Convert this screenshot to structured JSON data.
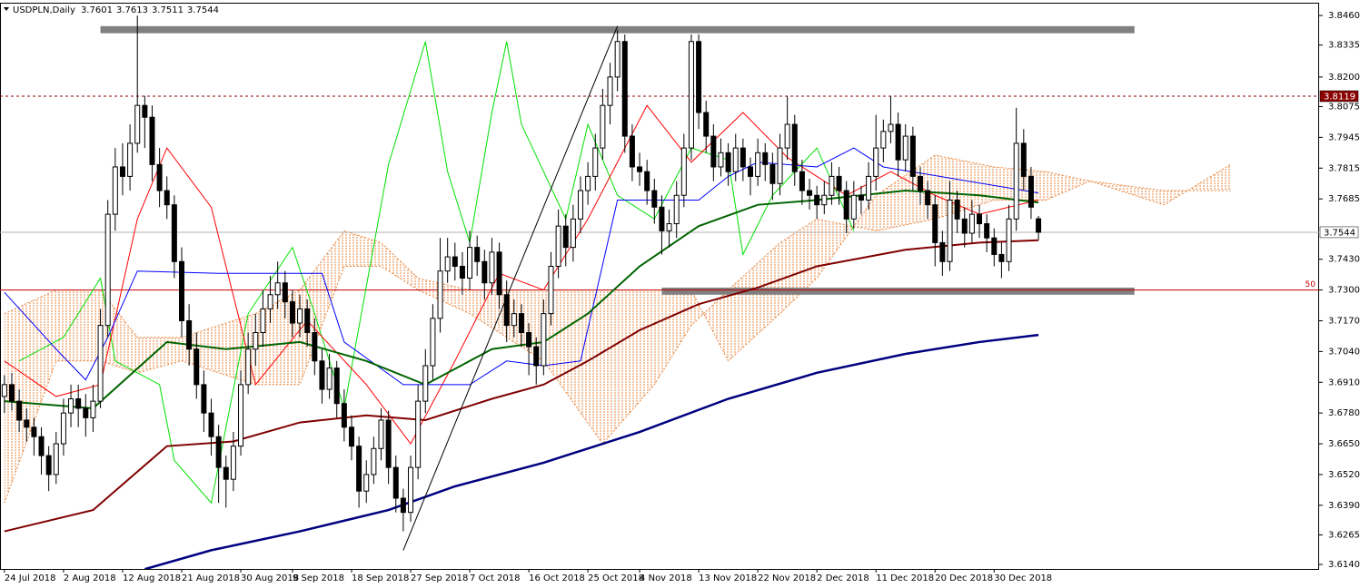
{
  "chart_data": {
    "type": "candlestick",
    "title": "USDPLN,Daily",
    "ohlc": [
      [
        3.685,
        3.694,
        3.678,
        3.69
      ],
      [
        3.69,
        3.695,
        3.679,
        3.683
      ],
      [
        3.683,
        3.688,
        3.67,
        3.675
      ],
      [
        3.675,
        3.68,
        3.666,
        3.672
      ],
      [
        3.672,
        3.676,
        3.66,
        3.668
      ],
      [
        3.668,
        3.672,
        3.652,
        3.66
      ],
      [
        3.66,
        3.664,
        3.645,
        3.652
      ],
      [
        3.652,
        3.67,
        3.648,
        3.665
      ],
      [
        3.665,
        3.684,
        3.66,
        3.678
      ],
      [
        3.678,
        3.69,
        3.672,
        3.684
      ],
      [
        3.684,
        3.69,
        3.672,
        3.68
      ],
      [
        3.68,
        3.686,
        3.668,
        3.676
      ],
      [
        3.676,
        3.69,
        3.67,
        3.683
      ],
      [
        3.683,
        3.722,
        3.68,
        3.715
      ],
      [
        3.715,
        3.768,
        3.71,
        3.762
      ],
      [
        3.762,
        3.79,
        3.755,
        3.782
      ],
      [
        3.782,
        3.792,
        3.77,
        3.778
      ],
      [
        3.778,
        3.8,
        3.772,
        3.792
      ],
      [
        3.792,
        3.846,
        3.788,
        3.808
      ],
      [
        3.808,
        3.812,
        3.79,
        3.803
      ],
      [
        3.803,
        3.808,
        3.776,
        3.783
      ],
      [
        3.783,
        3.79,
        3.765,
        3.772
      ],
      [
        3.772,
        3.778,
        3.76,
        3.766
      ],
      [
        3.766,
        3.77,
        3.735,
        3.742
      ],
      [
        3.742,
        3.748,
        3.71,
        3.717
      ],
      [
        3.717,
        3.724,
        3.698,
        3.705
      ],
      [
        3.705,
        3.712,
        3.684,
        3.69
      ],
      [
        3.69,
        3.696,
        3.67,
        3.678
      ],
      [
        3.678,
        3.684,
        3.66,
        3.668
      ],
      [
        3.668,
        3.673,
        3.64,
        3.655
      ],
      [
        3.655,
        3.66,
        3.638,
        3.65
      ],
      [
        3.65,
        3.67,
        3.645,
        3.664
      ],
      [
        3.664,
        3.696,
        3.66,
        3.69
      ],
      [
        3.69,
        3.712,
        3.686,
        3.705
      ],
      [
        3.705,
        3.72,
        3.698,
        3.712
      ],
      [
        3.712,
        3.73,
        3.706,
        3.722
      ],
      [
        3.722,
        3.736,
        3.716,
        3.728
      ],
      [
        3.728,
        3.742,
        3.722,
        3.733
      ],
      [
        3.733,
        3.738,
        3.718,
        3.725
      ],
      [
        3.725,
        3.73,
        3.71,
        3.716
      ],
      [
        3.716,
        3.728,
        3.71,
        3.722
      ],
      [
        3.722,
        3.726,
        3.706,
        3.712
      ],
      [
        3.712,
        3.718,
        3.694,
        3.7
      ],
      [
        3.7,
        3.705,
        3.682,
        3.688
      ],
      [
        3.688,
        3.703,
        3.684,
        3.697
      ],
      [
        3.697,
        3.7,
        3.676,
        3.682
      ],
      [
        3.682,
        3.688,
        3.666,
        3.672
      ],
      [
        3.672,
        3.677,
        3.658,
        3.664
      ],
      [
        3.664,
        3.668,
        3.638,
        3.645
      ],
      [
        3.645,
        3.658,
        3.64,
        3.652
      ],
      [
        3.652,
        3.668,
        3.648,
        3.663
      ],
      [
        3.663,
        3.68,
        3.658,
        3.675
      ],
      [
        3.675,
        3.679,
        3.648,
        3.655
      ],
      [
        3.655,
        3.66,
        3.636,
        3.642
      ],
      [
        3.642,
        3.646,
        3.628,
        3.636
      ],
      [
        3.636,
        3.66,
        3.632,
        3.655
      ],
      [
        3.655,
        3.69,
        3.65,
        3.683
      ],
      [
        3.683,
        3.705,
        3.678,
        3.698
      ],
      [
        3.698,
        3.724,
        3.692,
        3.718
      ],
      [
        3.718,
        3.752,
        3.712,
        3.738
      ],
      [
        3.738,
        3.752,
        3.733,
        3.744
      ],
      [
        3.744,
        3.75,
        3.734,
        3.74
      ],
      [
        3.74,
        3.746,
        3.728,
        3.735
      ],
      [
        3.735,
        3.755,
        3.73,
        3.748
      ],
      [
        3.748,
        3.753,
        3.736,
        3.742
      ],
      [
        3.742,
        3.747,
        3.726,
        3.733
      ],
      [
        3.733,
        3.752,
        3.728,
        3.746
      ],
      [
        3.746,
        3.75,
        3.722,
        3.728
      ],
      [
        3.728,
        3.734,
        3.708,
        3.715
      ],
      [
        3.715,
        3.726,
        3.71,
        3.72
      ],
      [
        3.72,
        3.724,
        3.706,
        3.712
      ],
      [
        3.712,
        3.716,
        3.694,
        3.706
      ],
      [
        3.706,
        3.71,
        3.69,
        3.698
      ],
      [
        3.698,
        3.726,
        3.694,
        3.72
      ],
      [
        3.72,
        3.746,
        3.715,
        3.74
      ],
      [
        3.74,
        3.764,
        3.735,
        3.757
      ],
      [
        3.757,
        3.762,
        3.74,
        3.748
      ],
      [
        3.748,
        3.766,
        3.742,
        3.76
      ],
      [
        3.76,
        3.778,
        3.754,
        3.772
      ],
      [
        3.772,
        3.784,
        3.766,
        3.778
      ],
      [
        3.778,
        3.796,
        3.772,
        3.79
      ],
      [
        3.79,
        3.815,
        3.785,
        3.808
      ],
      [
        3.808,
        3.826,
        3.8,
        3.82
      ],
      [
        3.82,
        3.84,
        3.814,
        3.835
      ],
      [
        3.835,
        3.838,
        3.788,
        3.795
      ],
      [
        3.795,
        3.8,
        3.776,
        3.782
      ],
      [
        3.782,
        3.788,
        3.774,
        3.78
      ],
      [
        3.78,
        3.785,
        3.766,
        3.772
      ],
      [
        3.772,
        3.777,
        3.758,
        3.765
      ],
      [
        3.765,
        3.77,
        3.745,
        3.755
      ],
      [
        3.755,
        3.764,
        3.748,
        3.758
      ],
      [
        3.758,
        3.776,
        3.752,
        3.77
      ],
      [
        3.77,
        3.796,
        3.765,
        3.79
      ],
      [
        3.79,
        3.838,
        3.785,
        3.835
      ],
      [
        3.835,
        3.838,
        3.798,
        3.805
      ],
      [
        3.805,
        3.81,
        3.788,
        3.795
      ],
      [
        3.795,
        3.8,
        3.776,
        3.782
      ],
      [
        3.782,
        3.794,
        3.778,
        3.788
      ],
      [
        3.788,
        3.792,
        3.774,
        3.78
      ],
      [
        3.78,
        3.796,
        3.776,
        3.79
      ],
      [
        3.79,
        3.794,
        3.776,
        3.782
      ],
      [
        3.782,
        3.786,
        3.77,
        3.778
      ],
      [
        3.778,
        3.794,
        3.774,
        3.788
      ],
      [
        3.788,
        3.792,
        3.776,
        3.783
      ],
      [
        3.783,
        3.788,
        3.768,
        3.775
      ],
      [
        3.775,
        3.796,
        3.77,
        3.79
      ],
      [
        3.79,
        3.812,
        3.785,
        3.8
      ],
      [
        3.8,
        3.804,
        3.774,
        3.78
      ],
      [
        3.78,
        3.785,
        3.766,
        3.772
      ],
      [
        3.772,
        3.777,
        3.764,
        3.77
      ],
      [
        3.77,
        3.774,
        3.76,
        3.766
      ],
      [
        3.766,
        3.776,
        3.762,
        3.77
      ],
      [
        3.77,
        3.784,
        3.766,
        3.778
      ],
      [
        3.778,
        3.782,
        3.766,
        3.772
      ],
      [
        3.772,
        3.776,
        3.754,
        3.76
      ],
      [
        3.76,
        3.776,
        3.756,
        3.77
      ],
      [
        3.77,
        3.774,
        3.762,
        3.768
      ],
      [
        3.768,
        3.784,
        3.764,
        3.778
      ],
      [
        3.778,
        3.804,
        3.772,
        3.79
      ],
      [
        3.79,
        3.802,
        3.784,
        3.797
      ],
      [
        3.797,
        3.812,
        3.792,
        3.8
      ],
      [
        3.8,
        3.805,
        3.778,
        3.785
      ],
      [
        3.785,
        3.8,
        3.78,
        3.795
      ],
      [
        3.795,
        3.799,
        3.772,
        3.778
      ],
      [
        3.778,
        3.782,
        3.766,
        3.772
      ],
      [
        3.772,
        3.776,
        3.76,
        3.766
      ],
      [
        3.766,
        3.77,
        3.74,
        3.75
      ],
      [
        3.75,
        3.755,
        3.736,
        3.742
      ],
      [
        3.742,
        3.776,
        3.738,
        3.768
      ],
      [
        3.768,
        3.772,
        3.754,
        3.76
      ],
      [
        3.76,
        3.765,
        3.748,
        3.754
      ],
      [
        3.754,
        3.768,
        3.75,
        3.762
      ],
      [
        3.762,
        3.766,
        3.752,
        3.758
      ],
      [
        3.758,
        3.762,
        3.746,
        3.752
      ],
      [
        3.752,
        3.756,
        3.74,
        3.745
      ],
      [
        3.745,
        3.75,
        3.735,
        3.742
      ],
      [
        3.742,
        3.766,
        3.738,
        3.76
      ],
      [
        3.76,
        3.807,
        3.755,
        3.792
      ],
      [
        3.792,
        3.798,
        3.772,
        3.778
      ],
      [
        3.778,
        3.782,
        3.76,
        3.765
      ],
      [
        3.7601,
        3.7613,
        3.7511,
        3.7544
      ]
    ],
    "up_color": "#ffffff",
    "down_color": "#000000",
    "xlim": [
      -0.6,
      178
    ],
    "ylim": [
      3.6121,
      3.8514
    ],
    "xticks": [
      {
        "value": 0,
        "label": "24 Jul 2018"
      },
      {
        "value": 8,
        "label": "2 Aug 2018"
      },
      {
        "value": 16,
        "label": "12 Aug 2018"
      },
      {
        "value": 24,
        "label": "21 Aug 2018"
      },
      {
        "value": 32,
        "label": "30 Aug 2018"
      },
      {
        "value": 39,
        "label": "9 Sep 2018"
      },
      {
        "value": 47,
        "label": "18 Sep 2018"
      },
      {
        "value": 55,
        "label": "27 Sep 2018"
      },
      {
        "value": 63,
        "label": "7 Oct 2018"
      },
      {
        "value": 71,
        "label": "16 Oct 2018"
      },
      {
        "value": 79,
        "label": "25 Oct 2018"
      },
      {
        "value": 86,
        "label": "4 Nov 2018"
      },
      {
        "value": 94,
        "label": "13 Nov 2018"
      },
      {
        "value": 102,
        "label": "22 Nov 2018"
      },
      {
        "value": 110,
        "label": "2 Dec 2018"
      },
      {
        "value": 118,
        "label": "11 Dec 2018"
      },
      {
        "value": 126,
        "label": "20 Dec 2018"
      },
      {
        "value": 134,
        "label": "30 Dec 2018"
      }
    ],
    "yticks": [
      {
        "value": 3.846,
        "label": "3.8460"
      },
      {
        "value": 3.8335,
        "label": "3.8335"
      },
      {
        "value": 3.82,
        "label": "3.8200"
      },
      {
        "value": 3.8075,
        "label": "3.8075"
      },
      {
        "value": 3.7945,
        "label": "3.7945"
      },
      {
        "value": 3.7815,
        "label": "3.7815"
      },
      {
        "value": 3.7685,
        "label": "3.7685"
      },
      {
        "value": 3.743,
        "label": "3.7430"
      },
      {
        "value": 3.73,
        "label": "3.7300"
      },
      {
        "value": 3.717,
        "label": "3.7170"
      },
      {
        "value": 3.704,
        "label": "3.7040"
      },
      {
        "value": 3.691,
        "label": "3.6910"
      },
      {
        "value": 3.678,
        "label": "3.6780"
      },
      {
        "value": 3.665,
        "label": "3.6650"
      },
      {
        "value": 3.652,
        "label": "3.6520"
      },
      {
        "value": 3.639,
        "label": "3.6390"
      },
      {
        "value": 3.6265,
        "label": "3.6265"
      },
      {
        "value": 3.614,
        "label": "3.6140"
      }
    ],
    "cloud": {
      "color": "#e8843c",
      "x": [
        0,
        7,
        13,
        18,
        24,
        34,
        40,
        46,
        51,
        56,
        63,
        73,
        81,
        88,
        93,
        98,
        105,
        110,
        118,
        126,
        134,
        141,
        147,
        157,
        166
      ],
      "span_a": [
        3.72,
        3.73,
        3.73,
        3.71,
        3.71,
        3.72,
        3.73,
        3.755,
        3.75,
        3.735,
        3.73,
        3.73,
        3.73,
        3.73,
        3.73,
        3.7,
        3.72,
        3.735,
        3.77,
        3.787,
        3.782,
        3.78,
        3.776,
        3.766,
        3.783
      ],
      "span_b": [
        3.64,
        3.7,
        3.7,
        3.695,
        3.7,
        3.69,
        3.69,
        3.74,
        3.74,
        3.73,
        3.72,
        3.7,
        3.665,
        3.69,
        3.715,
        3.73,
        3.75,
        3.76,
        3.755,
        3.76,
        3.768,
        3.768,
        3.776,
        3.772,
        3.772
      ]
    },
    "lines": [
      {
        "color": "#00e000",
        "width": 1,
        "x": [
          2,
          8,
          13,
          15,
          21,
          23,
          28,
          33,
          39,
          42,
          46,
          52,
          57,
          60,
          63,
          66,
          68,
          70,
          73,
          76,
          79,
          83,
          88,
          93,
          98,
          100,
          104,
          110,
          115
        ],
        "values": [
          3.7,
          3.71,
          3.735,
          3.7,
          3.69,
          3.658,
          3.64,
          3.72,
          3.748,
          3.72,
          3.68,
          3.783,
          3.835,
          3.78,
          3.75,
          3.805,
          3.835,
          3.8,
          3.78,
          3.76,
          3.8,
          3.77,
          3.76,
          3.79,
          3.785,
          3.745,
          3.77,
          3.79,
          3.755
        ]
      },
      {
        "color": "#ff0000",
        "width": 1,
        "x": [
          0,
          7,
          13,
          18,
          22,
          28,
          34,
          41,
          49,
          55,
          61,
          67,
          73,
          79,
          87,
          93,
          100,
          106,
          114,
          120,
          126,
          132,
          140
        ],
        "values": [
          3.7,
          3.685,
          3.69,
          3.76,
          3.79,
          3.765,
          3.69,
          3.717,
          3.69,
          3.665,
          3.7,
          3.737,
          3.73,
          3.76,
          3.808,
          3.784,
          3.805,
          3.786,
          3.77,
          3.78,
          3.77,
          3.762,
          3.768
        ]
      },
      {
        "color": "#0000ff",
        "width": 1,
        "x": [
          0,
          7,
          11,
          14,
          18,
          29,
          43,
          46,
          54,
          63,
          68,
          73,
          78,
          83,
          94,
          98,
          102,
          110,
          115,
          119,
          140
        ],
        "values": [
          3.729,
          3.705,
          3.692,
          3.71,
          3.738,
          3.737,
          3.737,
          3.708,
          3.69,
          3.69,
          3.7,
          3.698,
          3.7,
          3.768,
          3.768,
          3.778,
          3.784,
          3.782,
          3.79,
          3.782,
          3.771
        ]
      },
      {
        "color": "#800000",
        "width": 2,
        "x": [
          0,
          12,
          22,
          31,
          40,
          49,
          57,
          66,
          73,
          79,
          86,
          94,
          102,
          110,
          122,
          132,
          140
        ],
        "values": [
          3.628,
          3.637,
          3.664,
          3.666,
          3.674,
          3.677,
          3.675,
          3.684,
          3.69,
          3.7,
          3.713,
          3.724,
          3.731,
          3.74,
          3.747,
          3.75,
          3.751
        ]
      },
      {
        "color": "#006400",
        "width": 2,
        "x": [
          0,
          12,
          22,
          30,
          40,
          49,
          57,
          66,
          73,
          79,
          86,
          94,
          102,
          110,
          122,
          132,
          140
        ],
        "values": [
          3.683,
          3.68,
          3.708,
          3.705,
          3.708,
          3.7,
          3.69,
          3.705,
          3.708,
          3.72,
          3.74,
          3.757,
          3.766,
          3.768,
          3.772,
          3.77,
          3.767
        ]
      },
      {
        "color": "#000080",
        "width": 2.5,
        "x": [
          19,
          28,
          40,
          52,
          61,
          73,
          86,
          98,
          110,
          122,
          132,
          140
        ],
        "values": [
          3.612,
          3.62,
          3.628,
          3.637,
          3.647,
          3.657,
          3.67,
          3.684,
          3.695,
          3.703,
          3.708,
          3.711
        ]
      }
    ],
    "bands": [
      {
        "color": "#808080",
        "x": [
          13,
          153
        ],
        "y": [
          3.8385,
          3.8415
        ]
      },
      {
        "color": "#808080",
        "x": [
          89,
          153
        ],
        "y": [
          3.728,
          3.731
        ]
      }
    ],
    "trendline": {
      "color": "#000000",
      "x": [
        54,
        83
      ],
      "values": [
        3.62,
        3.8415
      ]
    },
    "hline": {
      "value": 3.8119,
      "color": "#8b0000"
    },
    "fib_level": {
      "value": 3.73,
      "label": "50",
      "color": "#c00000"
    }
  }
}
